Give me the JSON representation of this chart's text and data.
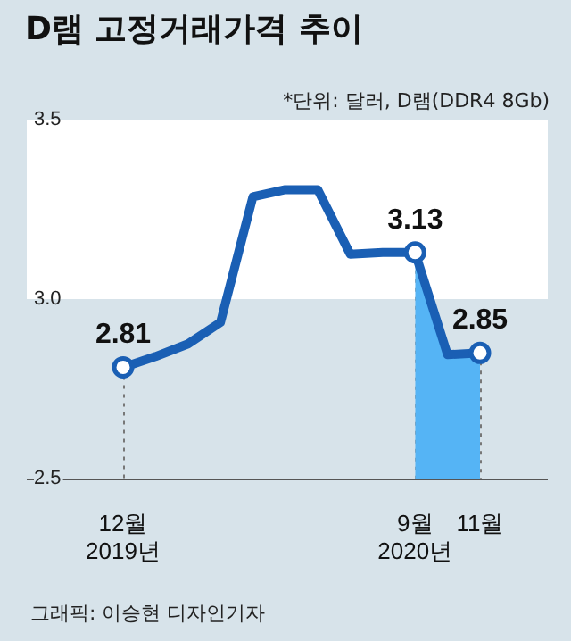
{
  "chart_data": {
    "type": "line",
    "title": "D램 고정거래가격 추이",
    "subtitle": "*단위: 달러, D램(DDR4 8Gb)",
    "categories": [
      "12월\n2019년",
      null,
      null,
      null,
      null,
      null,
      null,
      null,
      null,
      "9월\n2020년",
      null,
      "11월"
    ],
    "series": [
      {
        "type": "area",
        "color": "#55b4f5",
        "values": [
          null,
          null,
          null,
          null,
          null,
          null,
          null,
          null,
          null,
          3.13,
          2.845,
          2.85
        ]
      },
      {
        "type": "line",
        "color": "#1a5fb4",
        "values": [
          2.81,
          2.84,
          2.875,
          2.935,
          3.285,
          3.305,
          3.305,
          3.125,
          3.13,
          3.13,
          2.845,
          2.85
        ],
        "value_labels": [
          "2.81",
          null,
          null,
          null,
          null,
          null,
          null,
          null,
          null,
          "3.13",
          null,
          "2.85"
        ]
      }
    ],
    "line_style": "solid",
    "ylim": [
      2.5,
      3.5
    ],
    "yticks": [
      2.5,
      {
        "value": 3,
        "label": "3.0"
      },
      3.5
    ],
    "bands": [
      {
        "axis": "y",
        "from": 3,
        "to": 3.5,
        "color": "#ffffff"
      }
    ],
    "ref_lines": [
      {
        "axis": "x",
        "value": "12월\n2019년",
        "line_style": "dotted",
        "color": "#777777"
      },
      {
        "axis": "x",
        "value": "9월\n2020년",
        "line_style": "dotted",
        "color": "#777777"
      },
      {
        "axis": "x",
        "value": "11월",
        "line_style": "dotted",
        "color": "#777777"
      }
    ],
    "annotations": [
      "그래픽: 이승현 디자인기자"
    ],
    "legend": false,
    "grid": false
  }
}
